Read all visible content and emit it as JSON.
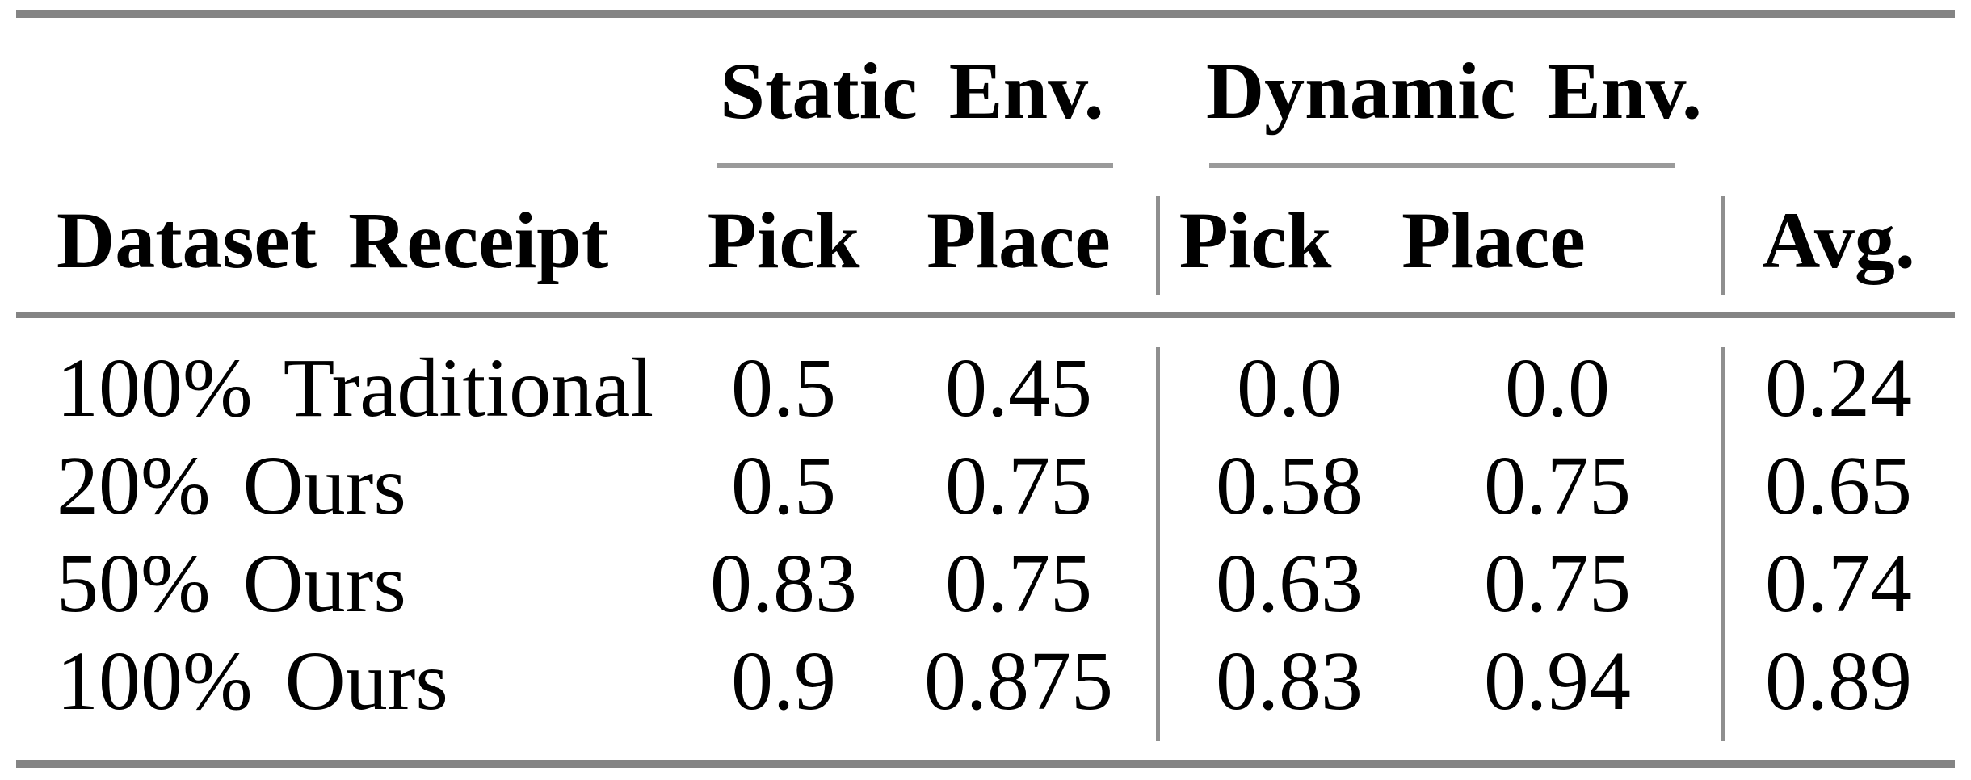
{
  "table": {
    "row_header": "Dataset Receipt",
    "groups": [
      {
        "label": "Static Env.",
        "columns": [
          "Pick",
          "Place"
        ]
      },
      {
        "label": "Dynamic Env.",
        "columns": [
          "Pick",
          "Place"
        ]
      }
    ],
    "avg_label": "Avg.",
    "rows": [
      {
        "receipt": "100% Traditional",
        "static_pick": "0.5",
        "static_place": "0.45",
        "dynamic_pick": "0.0",
        "dynamic_place": "0.0",
        "avg": "0.24"
      },
      {
        "receipt": "20% Ours",
        "static_pick": "0.5",
        "static_place": "0.75",
        "dynamic_pick": "0.58",
        "dynamic_place": "0.75",
        "avg": "0.65"
      },
      {
        "receipt": "50% Ours",
        "static_pick": "0.83",
        "static_place": "0.75",
        "dynamic_pick": "0.63",
        "dynamic_place": "0.75",
        "avg": "0.74"
      },
      {
        "receipt": "100% Ours",
        "static_pick": "0.9",
        "static_place": "0.875",
        "dynamic_pick": "0.83",
        "dynamic_place": "0.94",
        "avg": "0.89"
      }
    ],
    "colors": {
      "thick_rule": "#848484",
      "thin_rule": "#9a9a9a",
      "text": "#000000",
      "background": "#ffffff"
    }
  },
  "chart_data": {
    "type": "table",
    "title": "",
    "categories": [
      "100% Traditional",
      "20% Ours",
      "50% Ours",
      "100% Ours"
    ],
    "series": [
      {
        "name": "Static Env. Pick",
        "values": [
          0.5,
          0.5,
          0.83,
          0.9
        ]
      },
      {
        "name": "Static Env. Place",
        "values": [
          0.45,
          0.75,
          0.75,
          0.875
        ]
      },
      {
        "name": "Dynamic Env. Pick",
        "values": [
          0.0,
          0.58,
          0.63,
          0.83
        ]
      },
      {
        "name": "Dynamic Env. Place",
        "values": [
          0.0,
          0.75,
          0.75,
          0.94
        ]
      },
      {
        "name": "Avg.",
        "values": [
          0.24,
          0.65,
          0.74,
          0.89
        ]
      }
    ]
  }
}
